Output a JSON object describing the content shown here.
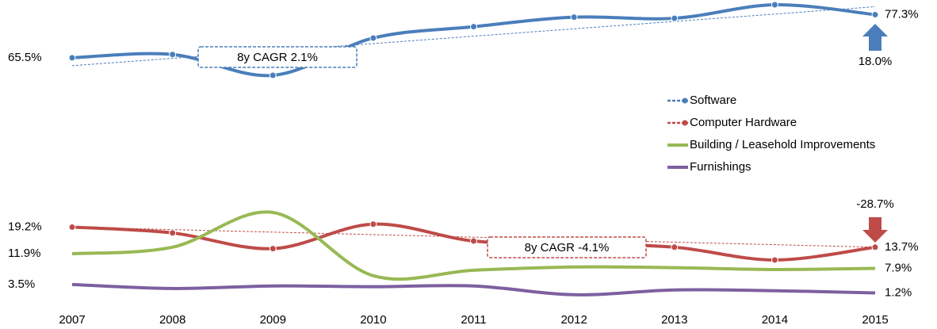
{
  "chart_data": {
    "type": "line",
    "categories": [
      "2007",
      "2008",
      "2009",
      "2010",
      "2011",
      "2012",
      "2013",
      "2014",
      "2015"
    ],
    "ylim": [
      0,
      80
    ],
    "legend": "right",
    "series": [
      {
        "name": "Software",
        "color": "#4a7ebb",
        "markers": true,
        "trend": true,
        "values": [
          65.5,
          66.4,
          60.7,
          70.9,
          74.0,
          76.6,
          76.3,
          80.0,
          77.3
        ],
        "value_labels": [
          "65.5%",
          null,
          null,
          null,
          null,
          null,
          null,
          null,
          "77.3%"
        ],
        "cagr_label": "8y CAGR 2.1%",
        "change_label": "18.0%"
      },
      {
        "name": "Computer Hardware",
        "color": "#be4b48",
        "markers": true,
        "trend": true,
        "values": [
          19.2,
          17.6,
          13.3,
          20.0,
          15.4,
          14.6,
          13.7,
          10.2,
          13.7
        ],
        "value_labels": [
          "19.2%",
          null,
          null,
          null,
          null,
          null,
          null,
          null,
          "13.7%"
        ],
        "cagr_label": "8y CAGR -4.1%",
        "change_label": "-28.7%"
      },
      {
        "name": "Building / Leasehold Improvements",
        "color": "#98b954",
        "markers": false,
        "trend": false,
        "values": [
          11.9,
          13.7,
          23.2,
          5.9,
          7.4,
          8.3,
          8.1,
          7.6,
          7.9
        ],
        "value_labels": [
          "11.9%",
          null,
          null,
          null,
          null,
          null,
          null,
          null,
          "7.9%"
        ]
      },
      {
        "name": "Furnishings",
        "color": "#7d60a0",
        "markers": false,
        "trend": false,
        "values": [
          3.5,
          2.4,
          3.1,
          2.9,
          3.1,
          0.7,
          2.0,
          1.8,
          1.2
        ],
        "value_labels": [
          "3.5%",
          null,
          null,
          null,
          null,
          null,
          null,
          null,
          "1.2%"
        ]
      }
    ]
  }
}
